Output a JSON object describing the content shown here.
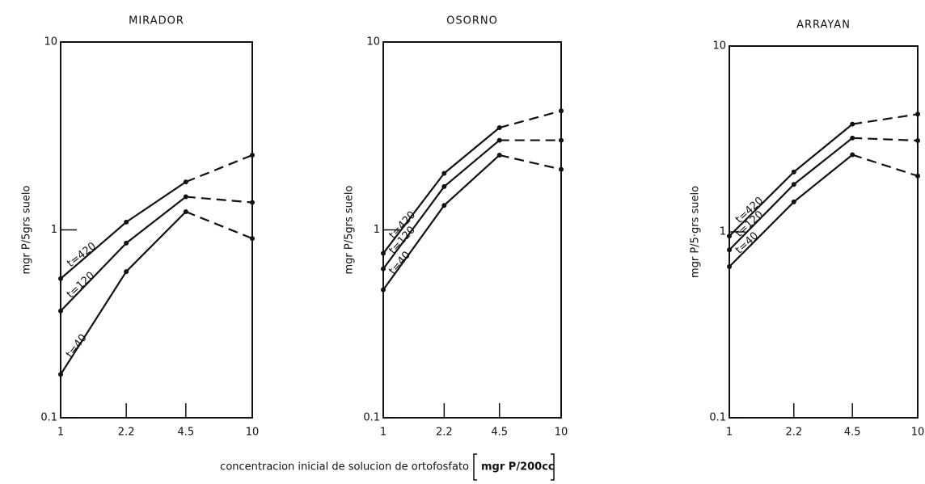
{
  "xlabel": "concentracion inicial de solucion de ortofosfato",
  "xlabel_unit": "mgr P/200cc",
  "chart_data": [
    {
      "type": "line",
      "title": "MIRADOR",
      "ylabel": "mgr P/5grs suelo",
      "log_x": true,
      "log_y": true,
      "x": [
        1,
        2.2,
        4.5,
        10
      ],
      "xlim": [
        1,
        10
      ],
      "xticks": [
        1,
        2.2,
        4.5,
        10
      ],
      "ylim": [
        0.1,
        10
      ],
      "yticks": [
        0.1,
        1,
        10
      ],
      "series": [
        {
          "name": "t=420",
          "color": "#111111",
          "values": [
            0.55,
            1.1,
            1.8,
            2.5
          ]
        },
        {
          "name": "t=120",
          "color": "#111111",
          "values": [
            0.37,
            0.85,
            1.5,
            1.4
          ]
        },
        {
          "name": "t=40",
          "color": "#111111",
          "values": [
            0.17,
            0.6,
            1.25,
            0.9
          ]
        }
      ]
    },
    {
      "type": "line",
      "title": "OSORNO",
      "ylabel": "mgr P/5grs suelo",
      "log_x": true,
      "log_y": true,
      "x": [
        1,
        2.2,
        4.5,
        10
      ],
      "xlim": [
        1,
        10
      ],
      "xticks": [
        1,
        2.2,
        4.5,
        10
      ],
      "ylim": [
        0.1,
        10
      ],
      "yticks": [
        0.1,
        1,
        10
      ],
      "series": [
        {
          "name": "t=420",
          "color": "#111111",
          "values": [
            0.75,
            2.0,
            3.5,
            4.3
          ]
        },
        {
          "name": "t=120",
          "color": "#111111",
          "values": [
            0.62,
            1.7,
            3.0,
            3.0
          ]
        },
        {
          "name": "t=40",
          "color": "#111111",
          "values": [
            0.48,
            1.35,
            2.5,
            2.1
          ]
        }
      ]
    },
    {
      "type": "line",
      "title": "ARRAYAN",
      "ylabel": "mgr P/5·grs suelo",
      "log_x": true,
      "log_y": true,
      "x": [
        1,
        2.2,
        4.5,
        10
      ],
      "xlim": [
        1,
        10
      ],
      "xticks": [
        1,
        2.2,
        4.5,
        10
      ],
      "ylim": [
        0.1,
        10
      ],
      "yticks": [
        0.1,
        1,
        10
      ],
      "series": [
        {
          "name": "t=420",
          "color": "#111111",
          "values": [
            0.95,
            2.1,
            3.8,
            4.3
          ]
        },
        {
          "name": "t=120",
          "color": "#111111",
          "values": [
            0.8,
            1.8,
            3.2,
            3.1
          ]
        },
        {
          "name": "t=40",
          "color": "#111111",
          "values": [
            0.65,
            1.45,
            2.6,
            2.0
          ]
        }
      ]
    }
  ]
}
